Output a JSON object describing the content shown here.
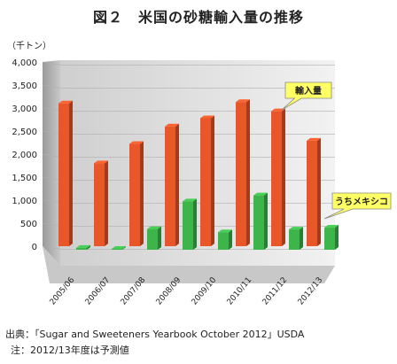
{
  "chart_data": {
    "type": "bar",
    "title": "図２　米国の砂糖輸入量の推移",
    "ylabel": "（千トン）",
    "xlabel": "",
    "categories": [
      "2005/06",
      "2006/07",
      "2007/08",
      "2008/09",
      "2009/10",
      "2010/11",
      "2011/12",
      "2012/13"
    ],
    "ylim": [
      0,
      4000
    ],
    "yticks": [
      "0",
      "500",
      "1,000",
      "1,500",
      "2,000",
      "2,500",
      "3,000",
      "3,500",
      "4,000"
    ],
    "series": [
      {
        "name": "輸入量",
        "color": "#e8562a",
        "values": [
          3100,
          1800,
          2220,
          2600,
          2780,
          3130,
          2930,
          2290
        ]
      },
      {
        "name": "うちメキシコ",
        "color": "#3db54a",
        "values": [
          40,
          20,
          450,
          1050,
          380,
          1180,
          440,
          480
        ]
      }
    ],
    "callout_color": "#ffff66"
  },
  "notes": {
    "source": "出典：「Sugar and Sweeteners Yearbook October 2012」USDA",
    "note": "注：2012/13年度は予測値"
  }
}
